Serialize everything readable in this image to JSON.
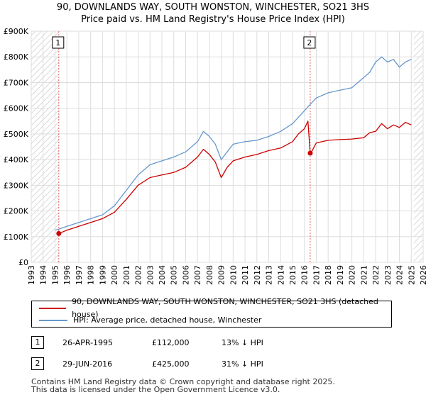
{
  "title_line1": "90, DOWNLANDS WAY, SOUTH WONSTON, WINCHESTER, SO21 3HS",
  "title_line2": "Price paid vs. HM Land Registry's House Price Index (HPI)",
  "colors": {
    "price_line": "#cc0000",
    "hpi_line": "#6699cc",
    "hatch": "#d0d0d0",
    "grid": "#dddddd",
    "marker_line": "#e88"
  },
  "chart_data": {
    "type": "line",
    "title": "Price paid vs. HM Land Registry's House Price Index (HPI)",
    "xlabel": "",
    "ylabel": "",
    "xlim": [
      1993,
      2026
    ],
    "ylim": [
      0,
      900000
    ],
    "x_ticks": [
      "1993",
      "1994",
      "1995",
      "1996",
      "1997",
      "1998",
      "1999",
      "2000",
      "2001",
      "2002",
      "2003",
      "2004",
      "2005",
      "2006",
      "2007",
      "2008",
      "2009",
      "2010",
      "2011",
      "2012",
      "2013",
      "2014",
      "2015",
      "2016",
      "2017",
      "2018",
      "2019",
      "2020",
      "2021",
      "2022",
      "2023",
      "2024",
      "2025",
      "2026"
    ],
    "y_ticks": [
      {
        "value": 0,
        "label": "£0"
      },
      {
        "value": 100000,
        "label": "£100K"
      },
      {
        "value": 200000,
        "label": "£200K"
      },
      {
        "value": 300000,
        "label": "£300K"
      },
      {
        "value": 400000,
        "label": "£400K"
      },
      {
        "value": 500000,
        "label": "£500K"
      },
      {
        "value": 600000,
        "label": "£600K"
      },
      {
        "value": 700000,
        "label": "£700K"
      },
      {
        "value": 800000,
        "label": "£800K"
      },
      {
        "value": 900000,
        "label": "£900K"
      }
    ],
    "hatched_ranges": [
      [
        1993,
        1995.32
      ],
      [
        2025.2,
        2026
      ]
    ],
    "series": [
      {
        "name": "90, DOWNLANDS WAY, SOUTH WONSTON, WINCHESTER, SO21 3HS (detached house)",
        "x": [
          1995.32,
          1996,
          1997,
          1998,
          1999,
          2000,
          2001,
          2002,
          2003,
          2004,
          2005,
          2006,
          2007,
          2007.5,
          2008,
          2008.5,
          2009,
          2009.5,
          2010,
          2011,
          2012,
          2013,
          2014,
          2015,
          2015.5,
          2016,
          2016.3,
          2016.49,
          2016.6,
          2017,
          2018,
          2019,
          2020,
          2021,
          2021.5,
          2022,
          2022.5,
          2023,
          2023.5,
          2024,
          2024.5,
          2025
        ],
        "values": [
          112000,
          125000,
          140000,
          155000,
          170000,
          195000,
          245000,
          300000,
          330000,
          340000,
          350000,
          370000,
          410000,
          440000,
          420000,
          390000,
          330000,
          370000,
          395000,
          410000,
          420000,
          435000,
          445000,
          470000,
          500000,
          520000,
          550000,
          425000,
          430000,
          465000,
          475000,
          478000,
          480000,
          485000,
          505000,
          510000,
          540000,
          520000,
          535000,
          525000,
          545000,
          535000
        ]
      },
      {
        "name": "HPI: Average price, detached house, Winchester",
        "x": [
          1995,
          1995.32,
          1996,
          1997,
          1998,
          1999,
          2000,
          2001,
          2002,
          2003,
          2004,
          2005,
          2006,
          2007,
          2007.5,
          2008,
          2008.5,
          2009,
          2009.5,
          2010,
          2011,
          2012,
          2013,
          2014,
          2015,
          2016,
          2016.49,
          2017,
          2018,
          2019,
          2020,
          2021,
          2021.5,
          2022,
          2022.5,
          2023,
          2023.5,
          2024,
          2024.5,
          2025
        ],
        "values": [
          125000,
          129000,
          140000,
          155000,
          170000,
          185000,
          220000,
          280000,
          340000,
          380000,
          395000,
          410000,
          430000,
          470000,
          510000,
          490000,
          460000,
          400000,
          430000,
          460000,
          470000,
          475000,
          490000,
          510000,
          540000,
          590000,
          615000,
          640000,
          660000,
          670000,
          680000,
          720000,
          740000,
          780000,
          800000,
          780000,
          790000,
          760000,
          780000,
          790000
        ]
      }
    ],
    "sales": [
      {
        "id": "1",
        "x": 1995.32,
        "price": 112000
      },
      {
        "id": "2",
        "x": 2016.49,
        "price": 425000
      }
    ]
  },
  "legend": {
    "property_label": "90, DOWNLANDS WAY, SOUTH WONSTON, WINCHESTER, SO21 3HS (detached house)",
    "hpi_label": "HPI: Average price, detached house, Winchester"
  },
  "transactions": [
    {
      "num": "1",
      "date": "26-APR-1995",
      "price": "£112,000",
      "hpi": "13% ↓ HPI"
    },
    {
      "num": "2",
      "date": "29-JUN-2016",
      "price": "£425,000",
      "hpi": "31% ↓ HPI"
    }
  ],
  "footer_line1": "Contains HM Land Registry data © Crown copyright and database right 2025.",
  "footer_line2": "This data is licensed under the Open Government Licence v3.0."
}
